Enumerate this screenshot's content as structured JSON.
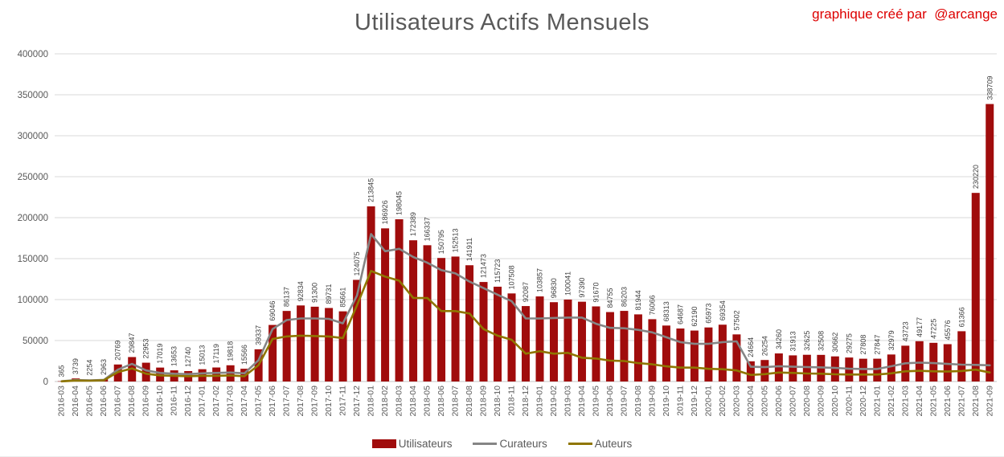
{
  "header": {
    "title": "Utilisateurs Actifs Mensuels",
    "attribution": "graphique créé par  @arcange"
  },
  "legend": {
    "items": [
      {
        "label": "Utilisateurs",
        "swatch": "bar",
        "color": "#a00c0c"
      },
      {
        "label": "Curateurs",
        "swatch": "line",
        "color": "#858585"
      },
      {
        "label": "Auteurs",
        "swatch": "line",
        "color": "#8f7600"
      }
    ]
  },
  "chart_data": {
    "type": "bar",
    "title": "Utilisateurs Actifs Mensuels",
    "categories": [
      "2016-03",
      "2016-04",
      "2016-05",
      "2016-06",
      "2016-07",
      "2016-08",
      "2016-09",
      "2016-10",
      "2016-11",
      "2016-12",
      "2017-01",
      "2017-02",
      "2017-03",
      "2017-04",
      "2017-05",
      "2017-06",
      "2017-07",
      "2017-08",
      "2017-09",
      "2017-10",
      "2017-11",
      "2017-12",
      "2018-01",
      "2018-02",
      "2018-03",
      "2018-04",
      "2018-05",
      "2018-06",
      "2018-07",
      "2018-08",
      "2018-09",
      "2018-10",
      "2018-11",
      "2018-12",
      "2019-01",
      "2019-02",
      "2019-03",
      "2019-04",
      "2019-05",
      "2019-06",
      "2019-07",
      "2019-08",
      "2019-09",
      "2019-10",
      "2019-11",
      "2019-12",
      "2020-01",
      "2020-02",
      "2020-03",
      "2020-04",
      "2020-05",
      "2020-06",
      "2020-07",
      "2020-08",
      "2020-09",
      "2020-10",
      "2020-11",
      "2020-12",
      "2021-01",
      "2021-02",
      "2021-03",
      "2021-04",
      "2021-05",
      "2021-06",
      "2021-07",
      "2021-08",
      "2021-09"
    ],
    "series": [
      {
        "name": "Utilisateurs",
        "type": "bar",
        "color": "#a00c0c",
        "labeled": true,
        "values": [
          365,
          3739,
          2254,
          2963,
          20769,
          29847,
          22953,
          17019,
          13653,
          12740,
          15013,
          17119,
          19818,
          15566,
          39337,
          69046,
          86137,
          92834,
          91300,
          89731,
          85661,
          124075,
          213845,
          186926,
          198045,
          172389,
          166337,
          150795,
          152513,
          141911,
          121473,
          115723,
          107508,
          92087,
          103857,
          96830,
          100041,
          97390,
          91670,
          84755,
          86203,
          81944,
          76066,
          68313,
          64687,
          62190,
          65973,
          69354,
          57502,
          24664,
          26254,
          34260,
          31913,
          32625,
          32508,
          30662,
          29275,
          27808,
          27847,
          32979,
          43723,
          49177,
          47225,
          45576,
          61366,
          230220,
          338709
        ]
      },
      {
        "name": "Curateurs",
        "type": "line",
        "color": "#858585",
        "labeled": false,
        "values": [
          300,
          1800,
          1500,
          2000,
          14500,
          21500,
          13500,
          10500,
          9500,
          9000,
          10000,
          10500,
          11000,
          10000,
          26000,
          64000,
          75000,
          77000,
          77000,
          76500,
          71000,
          105000,
          180000,
          159000,
          162000,
          152000,
          145000,
          136000,
          132000,
          122000,
          114000,
          106000,
          98000,
          77000,
          77000,
          77500,
          78000,
          78000,
          70500,
          65500,
          65000,
          63000,
          60000,
          54000,
          48000,
          46000,
          46000,
          48000,
          49000,
          18000,
          17500,
          18600,
          18000,
          17600,
          17300,
          16600,
          15600,
          15300,
          15300,
          18600,
          22300,
          23000,
          22500,
          21500,
          20600,
          20300,
          19800
        ]
      },
      {
        "name": "Auteurs",
        "type": "line",
        "color": "#8f7600",
        "labeled": false,
        "values": [
          200,
          1200,
          1000,
          1500,
          11500,
          16000,
          9500,
          7500,
          7000,
          6500,
          7000,
          7000,
          7500,
          6500,
          20000,
          52000,
          55000,
          56000,
          55500,
          55000,
          53000,
          93000,
          135000,
          128000,
          123000,
          102000,
          102000,
          86000,
          86000,
          83000,
          64000,
          56000,
          51000,
          34000,
          37000,
          34000,
          35000,
          29000,
          28000,
          25500,
          25000,
          22500,
          21000,
          18500,
          17000,
          17000,
          15500,
          15000,
          13500,
          8000,
          9000,
          11000,
          10500,
          9800,
          9500,
          8800,
          8500,
          8500,
          8500,
          10000,
          12500,
          13000,
          12500,
          12200,
          12800,
          14500,
          11000
        ]
      }
    ],
    "xlabel": "",
    "ylabel": "",
    "ylim": [
      0,
      400000
    ],
    "ytick_step": 50000,
    "yticks": [
      "0",
      "50000",
      "100000",
      "150000",
      "200000",
      "250000",
      "300000",
      "350000",
      "400000"
    ],
    "grid": true,
    "legend_position": "bottom",
    "bar_value_labels": true,
    "colors": {
      "grid": "#dadada",
      "baseline": "#c6c6c6",
      "axis_text": "#595959",
      "bar_label_text": "#3f3f3f",
      "title": "#595959",
      "attribution": "#dd0000"
    }
  }
}
